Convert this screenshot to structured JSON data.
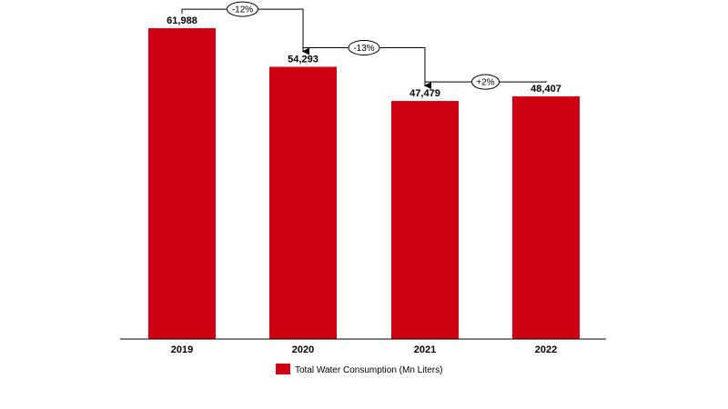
{
  "chart_data": {
    "type": "bar",
    "categories": [
      "2019",
      "2020",
      "2021",
      "2022"
    ],
    "series": [
      {
        "name": "Total Water Consumption (Mn Liters)",
        "values": [
          61988,
          54293,
          47479,
          48407
        ],
        "color": "#CC0012"
      }
    ],
    "data_labels": [
      "61,988",
      "54,293",
      "47,479",
      "48,407"
    ],
    "changes": [
      {
        "from": "2019",
        "to": "2020",
        "label": "-12%"
      },
      {
        "from": "2020",
        "to": "2021",
        "label": "-13%"
      },
      {
        "from": "2021",
        "to": "2022",
        "label": "+2%"
      }
    ],
    "title": "",
    "xlabel": "",
    "ylabel": "",
    "ylim": [
      0,
      62000
    ],
    "grid": false,
    "legend_position": "bottom"
  }
}
